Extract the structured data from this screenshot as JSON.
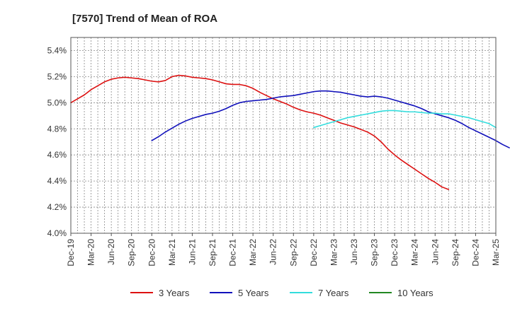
{
  "chart_data": {
    "type": "line",
    "title": "[7570]  Trend of Mean of ROA",
    "xlabel": "",
    "ylabel": "",
    "x_ticks": [
      "Dec-19",
      "Mar-20",
      "Jun-20",
      "Sep-20",
      "Dec-20",
      "Mar-21",
      "Jun-21",
      "Sep-21",
      "Dec-21",
      "Mar-22",
      "Jun-22",
      "Sep-22",
      "Dec-22",
      "Mar-23",
      "Jun-23",
      "Sep-23",
      "Dec-23",
      "Mar-24",
      "Jun-24",
      "Sep-24",
      "Dec-24",
      "Mar-25"
    ],
    "y_ticks": [
      "4.0%",
      "4.2%",
      "4.4%",
      "4.6%",
      "4.8%",
      "5.0%",
      "5.2%",
      "5.4%"
    ],
    "ylim": [
      4.0,
      5.5
    ],
    "grid": true,
    "legend_position": "bottom",
    "series": [
      {
        "name": "3 Years",
        "color": "#dd1111",
        "start_index": 0,
        "values": [
          5.0,
          5.03,
          5.06,
          5.1,
          5.13,
          5.16,
          5.18,
          5.19,
          5.195,
          5.19,
          5.185,
          5.175,
          5.165,
          5.16,
          5.17,
          5.2,
          5.21,
          5.205,
          5.195,
          5.19,
          5.185,
          5.175,
          5.16,
          5.145,
          5.14,
          5.14,
          5.13,
          5.11,
          5.08,
          5.055,
          5.03,
          5.01,
          4.99,
          4.965,
          4.945,
          4.93,
          4.92,
          4.905,
          4.885,
          4.865,
          4.845,
          4.83,
          4.815,
          4.795,
          4.775,
          4.745,
          4.7,
          4.645,
          4.6,
          4.56,
          4.525,
          4.49,
          4.455,
          4.42,
          4.39,
          4.355,
          4.335
        ]
      },
      {
        "name": "5 Years",
        "color": "#1111bb",
        "start_index": 12,
        "values": [
          4.71,
          4.74,
          4.775,
          4.805,
          4.835,
          4.86,
          4.88,
          4.895,
          4.91,
          4.92,
          4.935,
          4.955,
          4.98,
          5.0,
          5.01,
          5.015,
          5.02,
          5.025,
          5.035,
          5.045,
          5.05,
          5.055,
          5.065,
          5.075,
          5.085,
          5.09,
          5.09,
          5.085,
          5.08,
          5.07,
          5.06,
          5.05,
          5.045,
          5.05,
          5.045,
          5.035,
          5.02,
          5.005,
          4.99,
          4.975,
          4.955,
          4.93,
          4.915,
          4.9,
          4.885,
          4.865,
          4.84,
          4.81,
          4.785,
          4.76,
          4.735,
          4.71,
          4.68,
          4.655
        ]
      },
      {
        "name": "7 Years",
        "color": "#33dddd",
        "start_index": 36,
        "values": [
          4.81,
          4.825,
          4.84,
          4.855,
          4.87,
          4.885,
          4.895,
          4.905,
          4.915,
          4.925,
          4.935,
          4.94,
          4.94,
          4.935,
          4.93,
          4.93,
          4.925,
          4.92,
          4.92,
          4.915,
          4.915,
          4.905,
          4.895,
          4.885,
          4.87,
          4.855,
          4.84,
          4.81
        ]
      },
      {
        "name": "10 Years",
        "color": "#228822",
        "start_index": 0,
        "values": []
      }
    ]
  }
}
